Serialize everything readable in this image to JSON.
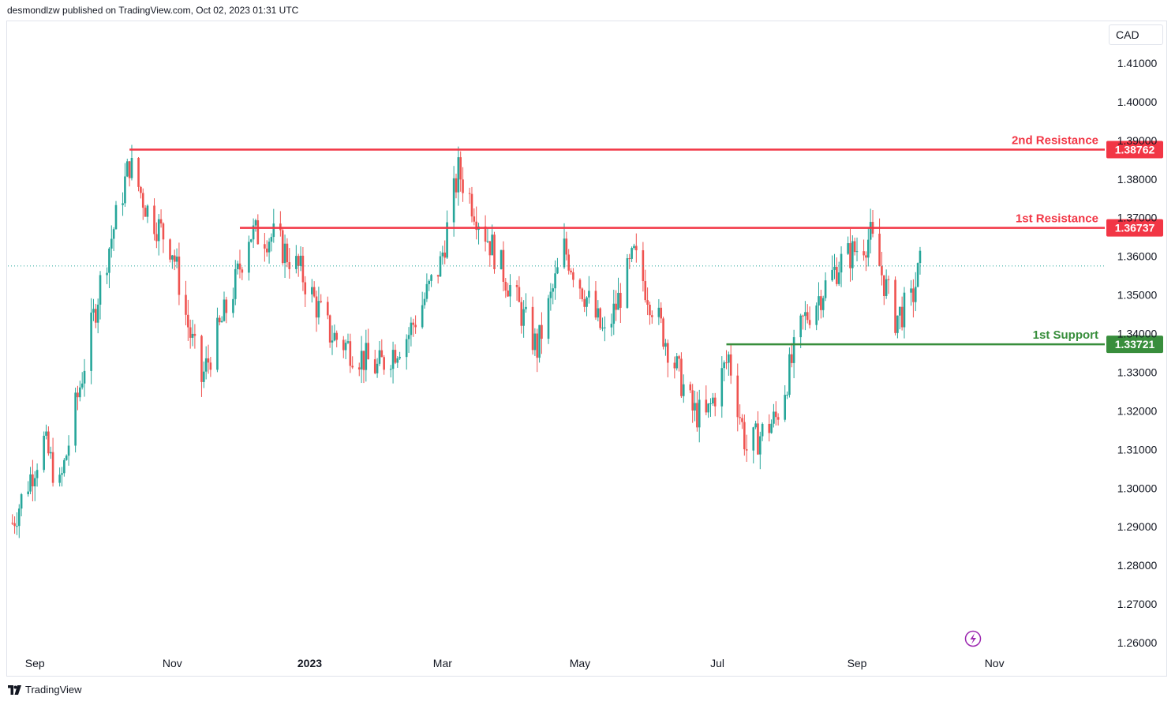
{
  "header": {
    "published_by": "desmondlzw published on TradingView.com, Oct 02, 2023 01:31 UTC"
  },
  "currency_label": "CAD",
  "footer": {
    "brand": "TradingView",
    "logo_icon": "tradingview-logo-icon"
  },
  "colors": {
    "bull": "#26a69a",
    "bear": "#ef5350",
    "resistance": "#f23645",
    "support": "#388e3c",
    "last_price_line": "#26a69a"
  },
  "chart_data": {
    "type": "candlestick",
    "ylim": [
      1.255,
      1.4185
    ],
    "y_ticks": [
      {
        "value": 1.41,
        "label": "1.41000"
      },
      {
        "value": 1.4,
        "label": "1.40000"
      },
      {
        "value": 1.39,
        "label": "1.39000"
      },
      {
        "value": 1.38,
        "label": "1.38000"
      },
      {
        "value": 1.37,
        "label": "1.37000"
      },
      {
        "value": 1.36,
        "label": "1.36000"
      },
      {
        "value": 1.35,
        "label": "1.35000"
      },
      {
        "value": 1.34,
        "label": "1.34000"
      },
      {
        "value": 1.33,
        "label": "1.33000"
      },
      {
        "value": 1.32,
        "label": "1.32000"
      },
      {
        "value": 1.31,
        "label": "1.31000"
      },
      {
        "value": 1.3,
        "label": "1.30000"
      },
      {
        "value": 1.29,
        "label": "1.29000"
      },
      {
        "value": 1.28,
        "label": "1.28000"
      },
      {
        "value": 1.27,
        "label": "1.27000"
      },
      {
        "value": 1.26,
        "label": "1.26000"
      }
    ],
    "x_ticks": [
      {
        "date": "2022-09-01",
        "label": "Sep",
        "bold": false
      },
      {
        "date": "2022-11-01",
        "label": "Nov",
        "bold": false
      },
      {
        "date": "2023-01-01",
        "label": "2023",
        "bold": true
      },
      {
        "date": "2023-03-01",
        "label": "Mar",
        "bold": false
      },
      {
        "date": "2023-05-01",
        "label": "May",
        "bold": false
      },
      {
        "date": "2023-07-01",
        "label": "Jul",
        "bold": false
      },
      {
        "date": "2023-09-01",
        "label": "Sep",
        "bold": false
      },
      {
        "date": "2023-11-01",
        "label": "Nov",
        "bold": false
      }
    ],
    "xlim": [
      "2022-08-20",
      "2023-12-20"
    ],
    "last_price": 1.3575,
    "levels": [
      {
        "name": "2nd Resistance",
        "value": 1.38762,
        "label": "1.38762",
        "kind": "resistance",
        "start": "2022-10-13"
      },
      {
        "name": "1st Resistance",
        "value": 1.36737,
        "label": "1.36737",
        "kind": "resistance",
        "start": "2022-12-01"
      },
      {
        "name": "1st Support",
        "value": 1.33721,
        "label": "1.33721",
        "kind": "support",
        "start": "2023-07-05"
      }
    ],
    "path_anchors": [
      {
        "date": "2022-08-22",
        "close": 1.291
      },
      {
        "date": "2022-09-05",
        "close": 1.312
      },
      {
        "date": "2022-09-12",
        "close": 1.3
      },
      {
        "date": "2022-09-30",
        "close": 1.353
      },
      {
        "date": "2022-10-13",
        "close": 1.384
      },
      {
        "date": "2022-10-21",
        "close": 1.372
      },
      {
        "date": "2022-11-01",
        "close": 1.362
      },
      {
        "date": "2022-11-08",
        "close": 1.342
      },
      {
        "date": "2022-11-14",
        "close": 1.328
      },
      {
        "date": "2022-11-29",
        "close": 1.353
      },
      {
        "date": "2022-12-05",
        "close": 1.366
      },
      {
        "date": "2022-12-16",
        "close": 1.365
      },
      {
        "date": "2022-12-28",
        "close": 1.356
      },
      {
        "date": "2023-01-10",
        "close": 1.34
      },
      {
        "date": "2023-01-31",
        "close": 1.331
      },
      {
        "date": "2023-02-14",
        "close": 1.34
      },
      {
        "date": "2023-02-28",
        "close": 1.358
      },
      {
        "date": "2023-03-08",
        "close": 1.382
      },
      {
        "date": "2023-03-17",
        "close": 1.37
      },
      {
        "date": "2023-03-31",
        "close": 1.352
      },
      {
        "date": "2023-04-12",
        "close": 1.336
      },
      {
        "date": "2023-04-24",
        "close": 1.362
      },
      {
        "date": "2023-05-05",
        "close": 1.348
      },
      {
        "date": "2023-05-12",
        "close": 1.339
      },
      {
        "date": "2023-05-25",
        "close": 1.36
      },
      {
        "date": "2023-06-07",
        "close": 1.34
      },
      {
        "date": "2023-06-20",
        "close": 1.32
      },
      {
        "date": "2023-06-26",
        "close": 1.318
      },
      {
        "date": "2023-07-06",
        "close": 1.334
      },
      {
        "date": "2023-07-14",
        "close": 1.31
      },
      {
        "date": "2023-07-27",
        "close": 1.318
      },
      {
        "date": "2023-08-08",
        "close": 1.343
      },
      {
        "date": "2023-08-24",
        "close": 1.358
      },
      {
        "date": "2023-09-07",
        "close": 1.365
      },
      {
        "date": "2023-09-18",
        "close": 1.344
      },
      {
        "date": "2023-09-25",
        "close": 1.348
      },
      {
        "date": "2023-09-29",
        "close": 1.3575
      }
    ]
  }
}
